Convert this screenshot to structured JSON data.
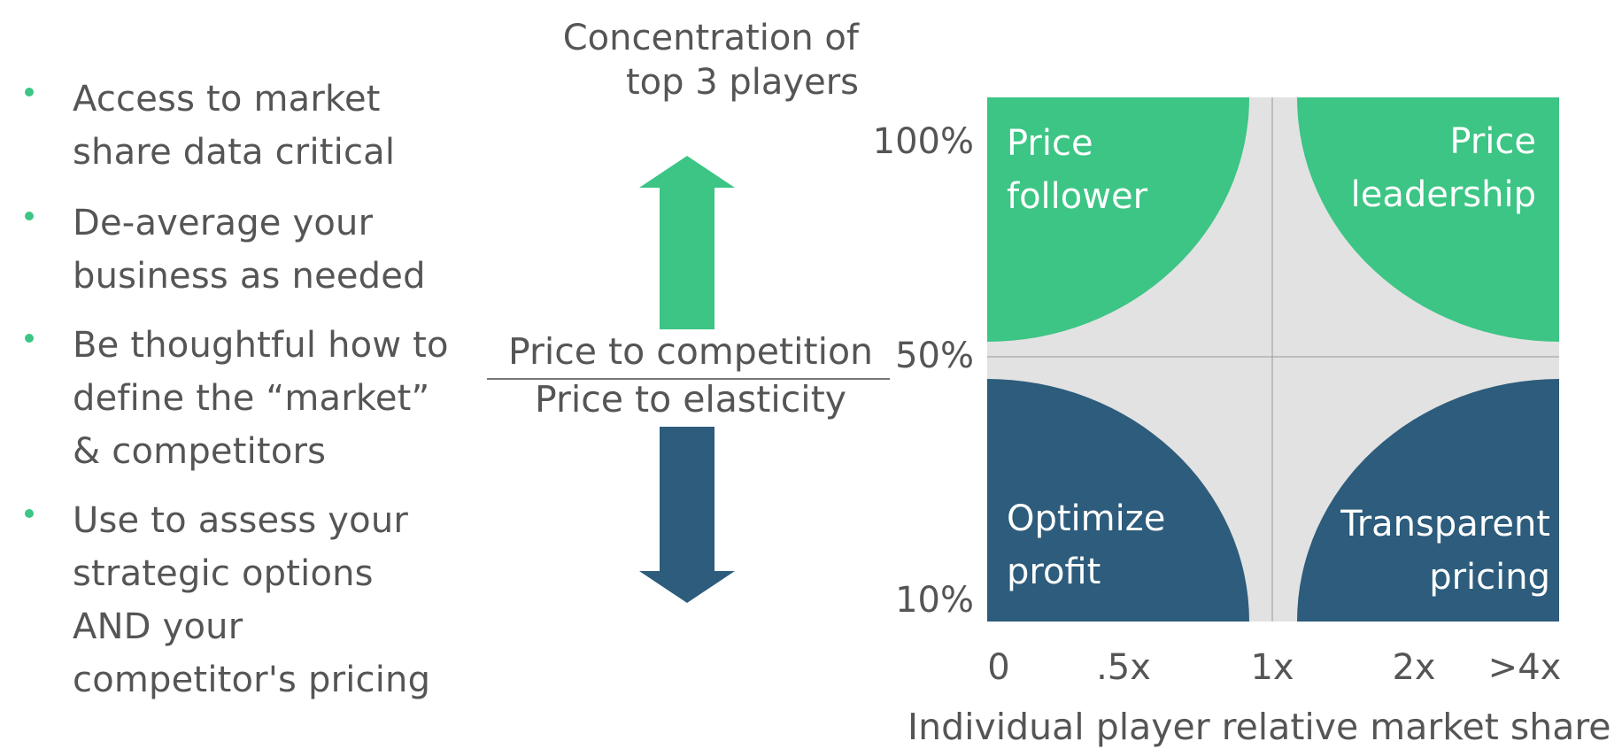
{
  "bullets": [
    "Access to market\nshare data critical",
    "De-average your\nbusiness as needed",
    "Be thoughtful how to\ndefine the “market”\n& competitors",
    "Use to assess your\nstrategic options\nAND your\ncompetitor's pricing"
  ],
  "y_axis_title": "Concentration of\ntop 3 players",
  "ratio": {
    "numerator": "Price to competition",
    "denominator": "Price to elasticity"
  },
  "y_ticks": [
    "100%",
    "50%",
    "10%"
  ],
  "x_ticks": [
    "0",
    ".5x",
    "1x",
    "2x",
    ">4x"
  ],
  "x_axis_title": "Individual player relative market share",
  "quadrants": {
    "top_left": "Price\nfollower",
    "top_right": "Price\nleadership",
    "bottom_left": "Optimize\nprofit",
    "bottom_right": "Transparent\npricing"
  },
  "colors": {
    "green": "#3CC584",
    "navy": "#2D5C7C",
    "gray_bg": "#E2E2E2",
    "text": "#555555",
    "bullet": "#3CC584"
  }
}
